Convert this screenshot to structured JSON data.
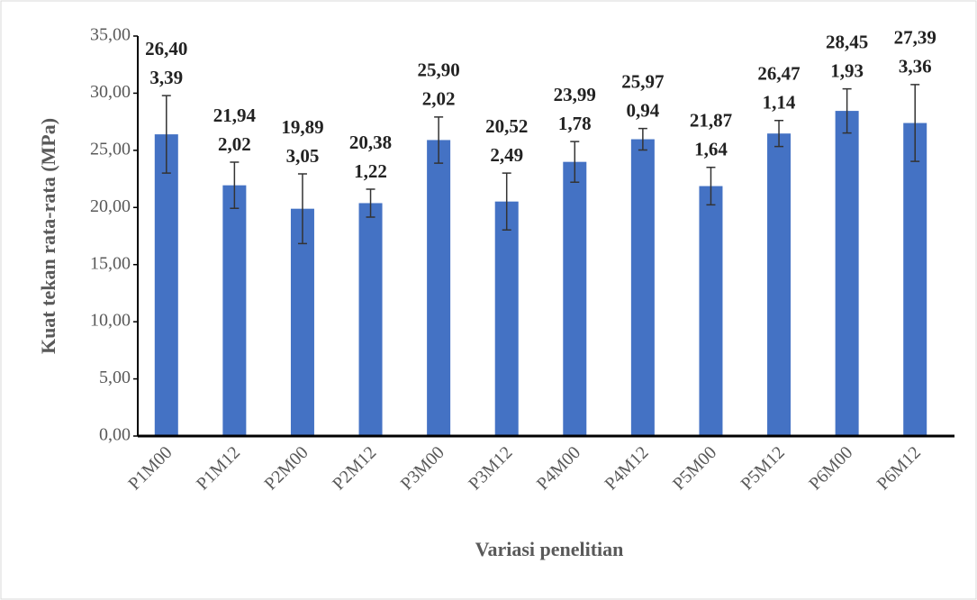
{
  "chart_data": {
    "type": "bar",
    "y_label": "Kuat tekan rata-rata (MPa)",
    "x_label": "Variasi penelitian",
    "categories": [
      "P1M00",
      "P1M12",
      "P2M00",
      "P2M12",
      "P3M00",
      "P3M12",
      "P4M00",
      "P4M12",
      "P5M00",
      "P5M12",
      "P6M00",
      "P6M12"
    ],
    "values": [
      26.4,
      21.94,
      19.89,
      20.38,
      25.9,
      20.52,
      23.99,
      25.97,
      21.87,
      26.47,
      28.45,
      27.39
    ],
    "value_labels": [
      "26,40",
      "21,94",
      "19,89",
      "20,38",
      "25,90",
      "20,52",
      "23,99",
      "25,97",
      "21,87",
      "26,47",
      "28,45",
      "27,39"
    ],
    "errors": [
      3.39,
      2.02,
      3.05,
      1.22,
      2.02,
      2.49,
      1.78,
      0.94,
      1.64,
      1.14,
      1.93,
      3.36
    ],
    "error_labels": [
      "3,39",
      "2,02",
      "3,05",
      "1,22",
      "2,02",
      "2,49",
      "1,78",
      "0,94",
      "1,64",
      "1,14",
      "1,93",
      "3,36"
    ],
    "color": "#4472c4",
    "ylim": [
      0,
      35
    ],
    "yticks": [
      {
        "value": 0,
        "label": "0,00"
      },
      {
        "value": 5,
        "label": "5,00"
      },
      {
        "value": 10,
        "label": "10,00"
      },
      {
        "value": 15,
        "label": "15,00"
      },
      {
        "value": 20,
        "label": "20,00"
      },
      {
        "value": 25,
        "label": "25,00"
      },
      {
        "value": 30,
        "label": "30,00"
      },
      {
        "value": 35,
        "label": "35,00"
      }
    ],
    "grid": false
  }
}
